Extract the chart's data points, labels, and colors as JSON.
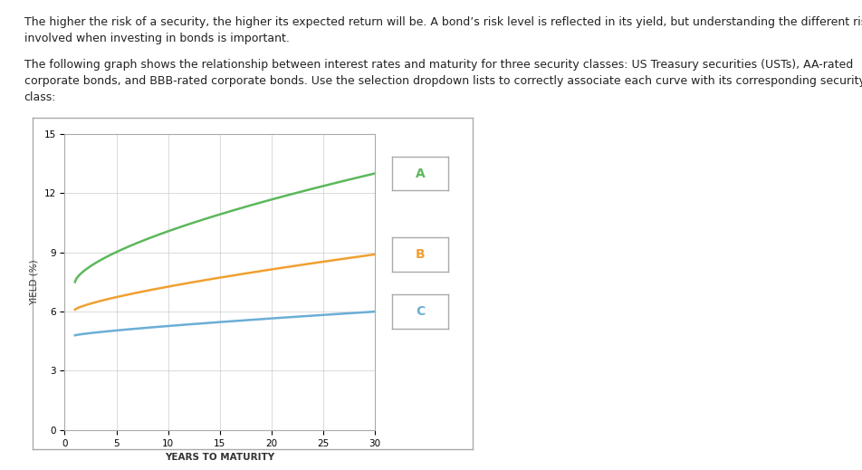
{
  "text_para1_line1": "The higher the risk of a security, the higher its expected return will be. A bond’s risk level is reflected in its yield, but understanding the different risks",
  "text_para1_line2": "involved when investing in bonds is important.",
  "text_para2_line1": "The following graph shows the relationship between interest rates and maturity for three security classes: US Treasury securities (USTs), AA-rated",
  "text_para2_line2": "corporate bonds, and BBB-rated corporate bonds. Use the selection dropdown lists to correctly associate each curve with its corresponding security",
  "text_para2_line3": "class:",
  "ylabel": "YIELD (%)",
  "xlabel": "YEARS TO MATURITY",
  "ylim": [
    0,
    15
  ],
  "xlim": [
    0,
    30
  ],
  "yticks": [
    0,
    3,
    6,
    9,
    12,
    15
  ],
  "xticks": [
    0,
    5,
    10,
    15,
    20,
    25,
    30
  ],
  "curve_A_color": "#5cb85c",
  "curve_B_color": "#f0a030",
  "curve_C_color": "#6baed6",
  "label_A": "A",
  "label_B": "B",
  "label_C": "C",
  "gold_bar_color": "#c8b870",
  "background_color": "#ffffff",
  "grid_color": "#cccccc",
  "font_size_text": 9.0,
  "font_size_axis_label": 7.5,
  "font_size_tick": 7.5,
  "curve_A_start": 7.5,
  "curve_A_end": 13.0,
  "curve_B_start": 6.1,
  "curve_B_end": 8.9,
  "curve_C_start": 4.8,
  "curve_C_end": 6.0
}
